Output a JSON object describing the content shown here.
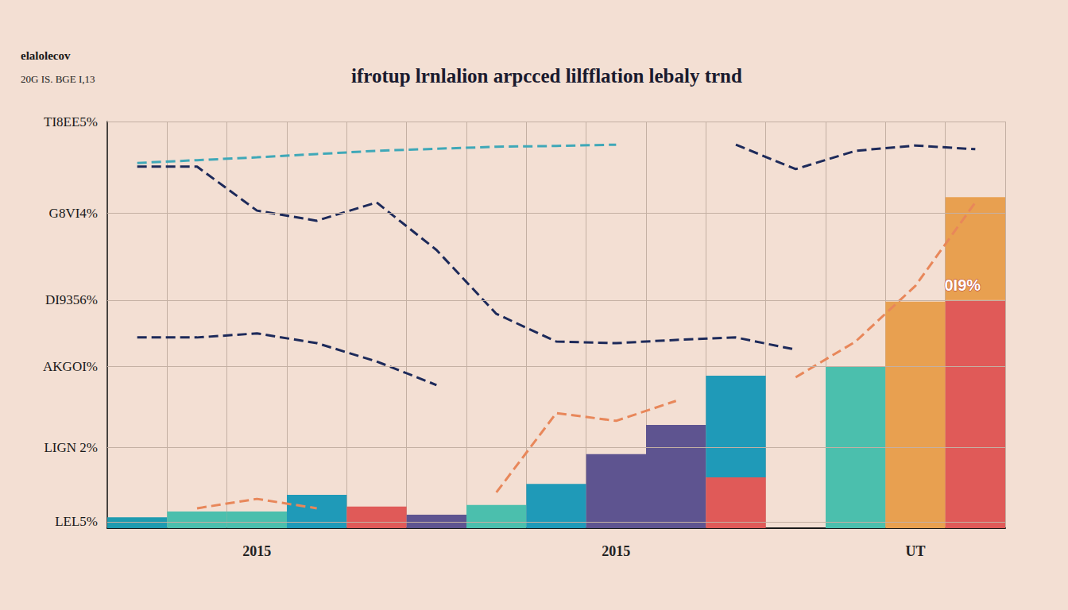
{
  "chart_data": {
    "type": "bar",
    "title": "ifrotup lrnlalion arpcced lilfflation lebaly trnd",
    "annotations": [
      "elalolecov",
      "20G IS. BGE I,13",
      "0I9%"
    ],
    "categories": [
      null,
      null,
      "2015",
      null,
      null,
      null,
      null,
      null,
      "2015",
      null,
      null,
      null,
      null,
      "UT",
      null
    ],
    "series": [
      {
        "type": "bar",
        "colors": [
          "#1e9bb0",
          "#4bbfad",
          "#4bbfad",
          "#1f9ab8",
          "#e05a58",
          "#5e5490",
          "#4bbfad",
          "#1f9ab8",
          "#5e5490",
          "#5e5490",
          "#e05a58",
          null,
          "#4bbfad",
          "#e8a050",
          "#e05a58"
        ],
        "values": [
          2.7,
          4.1,
          4.1,
          8.2,
          5.3,
          3.3,
          5.7,
          10.9,
          18.2,
          25.4,
          12.5,
          null,
          39.8,
          55.7,
          56.1
        ]
      },
      {
        "type": "bar",
        "colors": [
          null,
          null,
          null,
          null,
          null,
          null,
          null,
          null,
          null,
          null,
          "#1f9ab8",
          null,
          null,
          null,
          "#e8a050"
        ],
        "values": [
          null,
          null,
          null,
          null,
          null,
          null,
          null,
          null,
          null,
          null,
          25.0,
          null,
          null,
          null,
          25.3
        ]
      },
      {
        "type": "line",
        "color": "#3fa8b8",
        "line_style": "dashed",
        "marker": "none",
        "values": [
          89.8,
          90.5,
          91.2,
          92.0,
          92.8,
          93.3,
          93.8,
          94.0,
          94.3,
          null,
          null,
          null,
          null,
          null,
          null
        ]
      },
      {
        "type": "line",
        "color": "#1d2a5a",
        "line_style": "dashed",
        "marker": "none",
        "values": [
          88.9,
          88.9,
          78.1,
          75.6,
          80.1,
          68.4,
          52.7,
          45.9,
          45.5,
          46.3,
          46.9,
          43.9,
          null,
          null,
          null
        ]
      },
      {
        "type": "line",
        "color": "#1d2a5a",
        "line_style": "dashed",
        "marker": "none",
        "values": [
          null,
          null,
          null,
          null,
          null,
          null,
          null,
          null,
          null,
          null,
          94.3,
          88.3,
          92.8,
          94.1,
          93.2
        ]
      },
      {
        "type": "line",
        "color": "#1d2a5a",
        "line_style": "dashed",
        "marker": "none",
        "values": [
          46.9,
          46.9,
          47.9,
          45.5,
          41.0,
          35.2,
          null,
          null,
          null,
          null,
          null,
          null,
          null,
          null,
          null
        ]
      },
      {
        "type": "line",
        "color": "#e8875a",
        "line_style": "dashed",
        "marker": "none",
        "values": [
          null,
          4.9,
          7.2,
          4.9,
          null,
          null,
          8.8,
          28.3,
          26.4,
          31.3,
          null,
          37.1,
          45.9,
          59.6,
          80.1
        ]
      }
    ],
    "stacked": true,
    "ylim": [
      0,
      100
    ],
    "yticks": [
      {
        "value": 1.6,
        "label": "LEL5%"
      },
      {
        "value": 19.9,
        "label": "LIGN 2%"
      },
      {
        "value": 39.8,
        "label": "AKGOI%"
      },
      {
        "value": 56.1,
        "label": "DI9356%"
      },
      {
        "value": 77.5,
        "label": "G8VI4%"
      },
      {
        "value": 100,
        "label": "TI8EE5%"
      }
    ],
    "grid": true
  }
}
